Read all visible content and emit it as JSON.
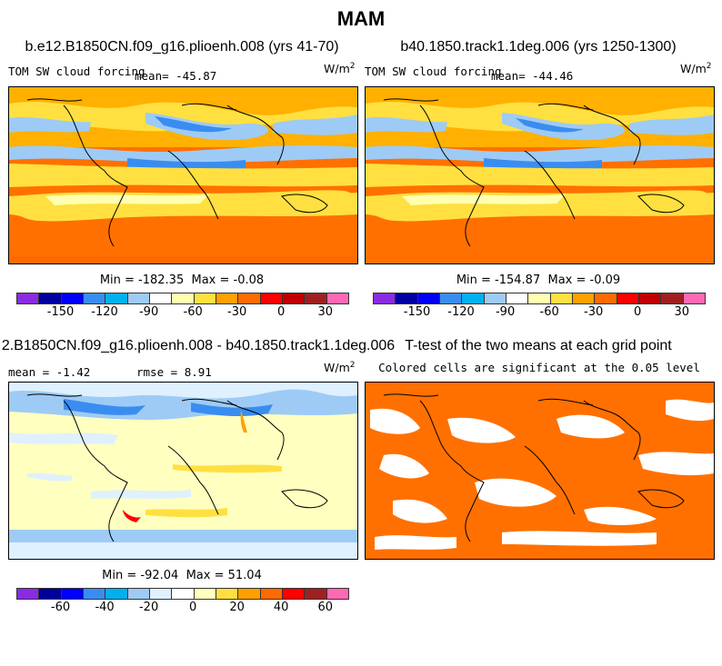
{
  "chart_data": [
    {
      "type": "heatmap",
      "title": "MAM",
      "panel_title": "b.e12.B1850CN.f09_g16.plioenh.008 (yrs 41-70)",
      "variable_label": "TOM SW cloud forcing",
      "mean_label": "mean= ",
      "mean": "-45.87",
      "units": "W/m",
      "units_exp": "2",
      "min_label": "Min = ",
      "min": "-182.35",
      "max_label": "Max = ",
      "max": "-0.08",
      "colorbar_ticks": [
        "-150",
        "-120",
        "-90",
        "-60",
        "-30",
        "0",
        "30"
      ],
      "colorbar_colors": [
        "#8a2be2",
        "#0000a0",
        "#0000ff",
        "#3a8df0",
        "#00b0f0",
        "#9ecbf5",
        "#ffffff",
        "#ffffb0",
        "#ffe040",
        "#ffa000",
        "#ff6a00",
        "#ff0000",
        "#c00000",
        "#a02020",
        "#ff69b4"
      ]
    },
    {
      "type": "heatmap",
      "panel_title": "b40.1850.track1.1deg.006 (yrs 1250-1300)",
      "variable_label": "TOM SW cloud forcing",
      "mean_label": "mean= ",
      "mean": "-44.46",
      "units": "W/m",
      "units_exp": "2",
      "min_label": "Min = ",
      "min": "-154.87",
      "max_label": "Max = ",
      "max": "-0.09",
      "colorbar_ticks": [
        "-150",
        "-120",
        "-90",
        "-60",
        "-30",
        "0",
        "30"
      ],
      "colorbar_colors": [
        "#8a2be2",
        "#0000a0",
        "#0000ff",
        "#3a8df0",
        "#00b0f0",
        "#9ecbf5",
        "#ffffff",
        "#ffffb0",
        "#ffe040",
        "#ffa000",
        "#ff6a00",
        "#ff0000",
        "#c00000",
        "#a02020",
        "#ff69b4"
      ]
    },
    {
      "type": "heatmap",
      "panel_title": "2.B1850CN.f09_g16.plioenh.008 - b40.1850.track1.1deg.006",
      "mean_label": "mean = ",
      "mean": "-1.42",
      "rmse_label": "rmse = ",
      "rmse": "8.91",
      "units": "W/m",
      "units_exp": "2",
      "min_label": "Min = ",
      "min": "-92.04",
      "max_label": "Max = ",
      "max": "51.04",
      "colorbar_ticks": [
        "-60",
        "-40",
        "-20",
        "0",
        "20",
        "40",
        "60"
      ],
      "colorbar_colors": [
        "#8a2be2",
        "#0000a0",
        "#0000ff",
        "#3a8df0",
        "#00b0f0",
        "#9ecbf5",
        "#dff0ff",
        "#ffffff",
        "#ffffc0",
        "#ffe040",
        "#ffa000",
        "#ff6a00",
        "#ff0000",
        "#a02020",
        "#ff69b4"
      ]
    },
    {
      "type": "heatmap",
      "panel_title": "T-test of the two means at each grid point",
      "note": "Colored cells are significant at the 0.05 level",
      "significant_color": "#ff7000"
    }
  ]
}
